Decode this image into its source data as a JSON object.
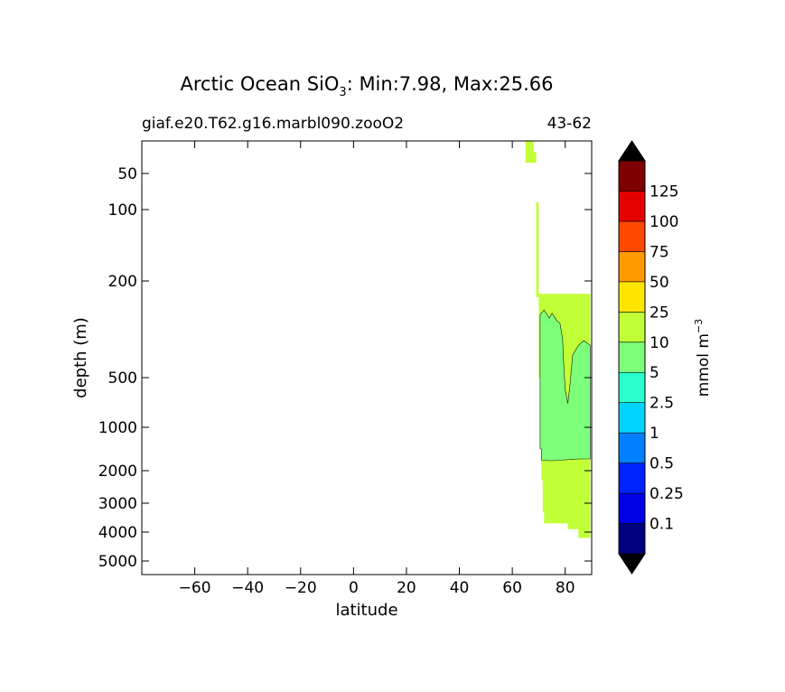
{
  "figure": {
    "title_main": "Arctic Ocean SiO",
    "title_sub": "3",
    "title_stats": ": Min:7.98, Max:25.66",
    "left_label": "giaf.e20.T62.g16.marbl090.zooO2",
    "right_label": "43-62"
  },
  "chart_data": {
    "type": "contourf",
    "title": "Arctic Ocean SiO3: Min:7.98, Max:25.66",
    "xlabel": "latitude",
    "ylabel": "depth (m)",
    "xlim": [
      -80,
      90
    ],
    "x_ticks": [
      -60,
      -40,
      -20,
      0,
      20,
      40,
      60,
      80
    ],
    "x_tick_labels": [
      "−60",
      "−40",
      "−20",
      "0",
      "20",
      "40",
      "60",
      "80"
    ],
    "y_ticks": [
      50,
      100,
      200,
      500,
      1000,
      2000,
      3000,
      4000,
      5000
    ],
    "y_tick_labels": [
      "50",
      "100",
      "200",
      "500",
      "1000",
      "2000",
      "3000",
      "4000",
      "5000"
    ],
    "colorbar": {
      "label_main": "mmol m",
      "label_exp": "−3",
      "levels": [
        0.1,
        0.25,
        0.5,
        1,
        2.5,
        5,
        10,
        25,
        50,
        75,
        100,
        125
      ],
      "tick_labels": [
        "0.1",
        "0.25",
        "0.5",
        "1",
        "2.5",
        "5",
        "10",
        "25",
        "50",
        "75",
        "100",
        "125"
      ],
      "colors": [
        "#00007f",
        "#0000e6",
        "#0022ff",
        "#0080ff",
        "#00d4ff",
        "#29ffce",
        "#7dff7a",
        "#c1ff36",
        "#ffe500",
        "#ff9900",
        "#ff4800",
        "#e50000",
        "#7f0000"
      ],
      "extend": "both"
    },
    "regions": [
      {
        "level_range": "10-25",
        "color": "#c1ff36",
        "outline": [
          [
            65,
            20
          ],
          [
            68,
            20
          ],
          [
            68,
            30
          ],
          [
            69,
            30
          ],
          [
            69,
            90
          ],
          [
            70,
            90
          ],
          [
            70,
            240
          ],
          [
            89.5,
            240
          ],
          [
            89.5,
            4200
          ],
          [
            85,
            4200
          ],
          [
            85,
            3900
          ],
          [
            81,
            3900
          ],
          [
            81,
            3700
          ],
          [
            72,
            3700
          ],
          [
            72,
            3300
          ],
          [
            71.5,
            3300
          ],
          [
            71.5,
            2300
          ],
          [
            71,
            2300
          ],
          [
            71,
            1500
          ],
          [
            70.5,
            1500
          ],
          [
            70.5,
            500
          ],
          [
            70,
            500
          ],
          [
            70,
            250
          ],
          [
            69,
            250
          ],
          [
            69,
            40
          ],
          [
            67,
            40
          ],
          [
            65,
            40
          ]
        ]
      },
      {
        "level_range": "5-10",
        "color": "#7dff7a",
        "outline": [
          [
            70.5,
            305
          ],
          [
            72,
            290
          ],
          [
            74,
            315
          ],
          [
            75,
            300
          ],
          [
            77,
            325
          ],
          [
            78,
            330
          ],
          [
            79,
            380
          ],
          [
            79.5,
            470
          ],
          [
            80,
            620
          ],
          [
            81,
            760
          ],
          [
            81.8,
            570
          ],
          [
            82.8,
            430
          ],
          [
            85,
            400
          ],
          [
            87,
            385
          ],
          [
            89.5,
            400
          ],
          [
            89.5,
            1730
          ],
          [
            85,
            1730
          ],
          [
            80,
            1750
          ],
          [
            75,
            1770
          ],
          [
            71,
            1760
          ],
          [
            71,
            1500
          ],
          [
            70.5,
            1500
          ]
        ]
      }
    ]
  }
}
